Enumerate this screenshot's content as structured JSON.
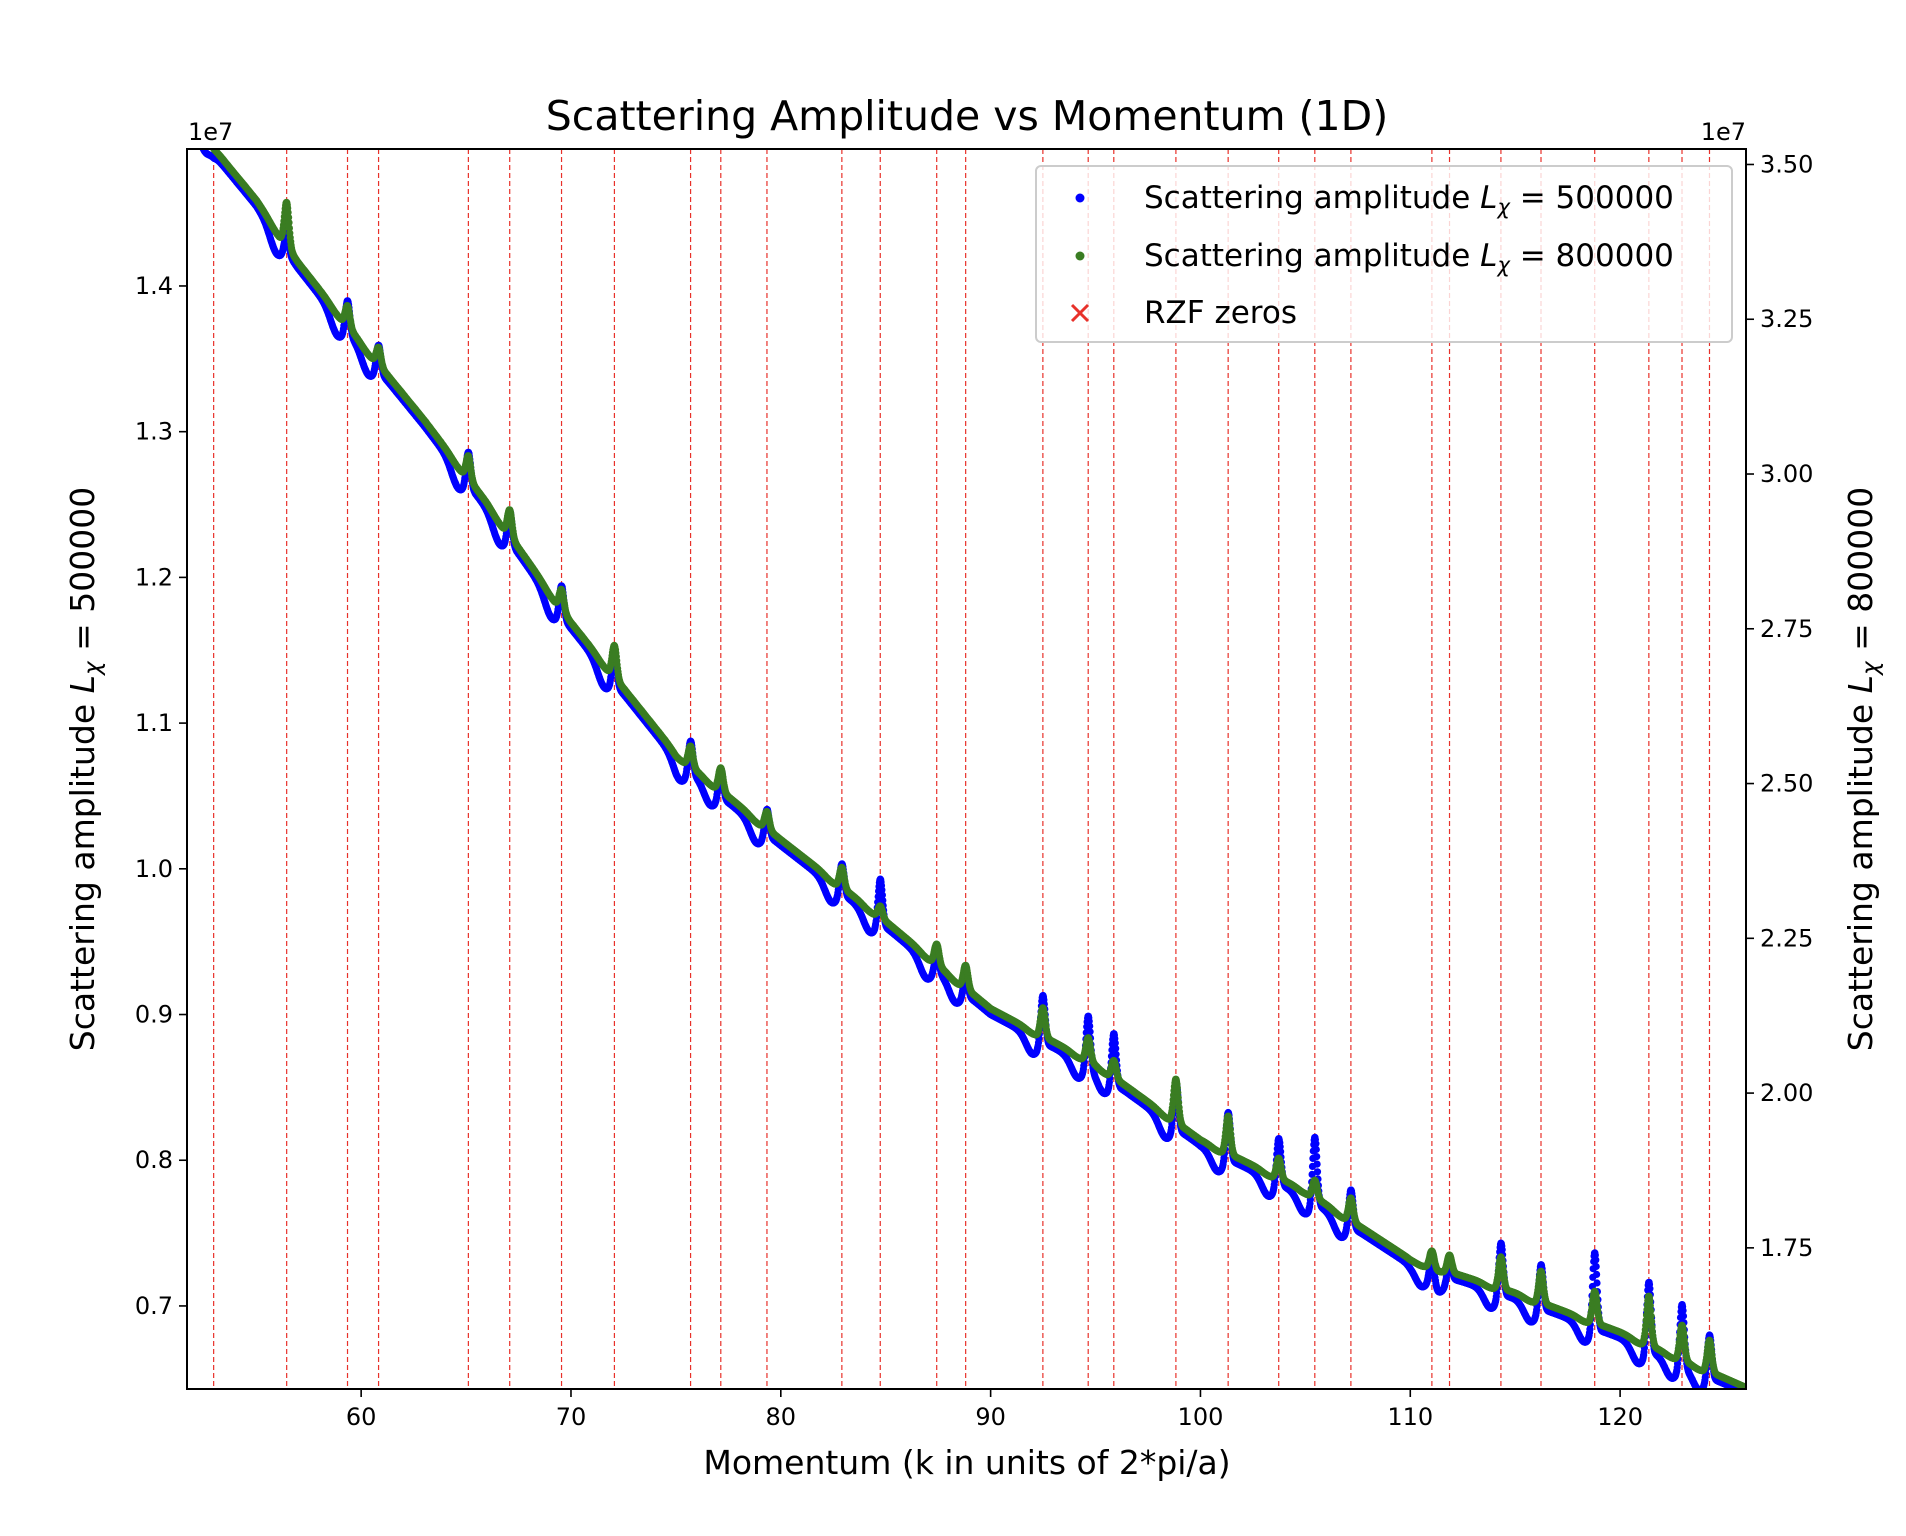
{
  "chart_data": {
    "type": "scatter",
    "title": "Scattering Amplitude vs Momentum (1D)",
    "xlabel": "Momentum (k in units of 2*pi/a)",
    "ylabel_left_prefix": "Scattering amplitude ",
    "ylabel_left_sym": "L",
    "ylabel_left_sub": "χ",
    "ylabel_left_suffix": " = 500000",
    "ylabel_right_prefix": "Scattering amplitude ",
    "ylabel_right_sym": "L",
    "ylabel_right_sub": "χ",
    "ylabel_right_suffix": " = 800000",
    "left_offset_label": "1e7",
    "right_offset_label": "1e7",
    "xlim": [
      51.7,
      126.0
    ],
    "ylim_left": [
      0.643,
      1.494
    ],
    "ylim_right": [
      1.522,
      3.525
    ],
    "xticks": [
      60,
      70,
      80,
      90,
      100,
      110,
      120
    ],
    "xtick_labels": [
      "60",
      "70",
      "80",
      "90",
      "100",
      "110",
      "120"
    ],
    "yticks_left": [
      0.7,
      0.8,
      0.9,
      1.0,
      1.1,
      1.2,
      1.3,
      1.4
    ],
    "ytick_labels_left": [
      "0.7",
      "0.8",
      "0.9",
      "1.0",
      "1.1",
      "1.2",
      "1.3",
      "1.4"
    ],
    "yticks_right": [
      1.75,
      2.0,
      2.25,
      2.5,
      2.75,
      3.0,
      3.25,
      3.5
    ],
    "ytick_labels_right": [
      "1.75",
      "2.00",
      "2.25",
      "2.50",
      "2.75",
      "3.00",
      "3.25",
      "3.50"
    ],
    "rzf_zeros": [
      52.97,
      56.45,
      59.35,
      60.83,
      65.11,
      67.08,
      69.55,
      72.07,
      75.7,
      77.14,
      79.34,
      82.91,
      84.74,
      87.43,
      88.81,
      92.49,
      94.65,
      95.87,
      98.83,
      101.32,
      103.73,
      105.45,
      107.17,
      111.03,
      111.87,
      114.32,
      116.23,
      118.79,
      121.37,
      122.95,
      124.26
    ],
    "baseline_x": [
      51.7,
      53,
      55,
      57,
      60,
      63,
      66,
      70,
      75,
      80,
      85,
      90,
      95,
      100,
      105,
      110,
      115,
      120,
      126
    ],
    "baseline_y": [
      1.53,
      1.49,
      1.455,
      1.412,
      1.357,
      1.304,
      1.247,
      1.165,
      1.075,
      1.016,
      0.96,
      0.9,
      0.862,
      0.81,
      0.775,
      0.728,
      0.705,
      0.678,
      0.64
    ],
    "series": [
      {
        "name": "Scattering amplitude L_χ = 500000",
        "color": "#0000ff",
        "axis": "left",
        "peak_heights_1e7": [
          0,
          0.015,
          0.024,
          0.02,
          0.025,
          0.024,
          0.023,
          0.024,
          0.024,
          0.022,
          0.02,
          0.023,
          0.033,
          0.014,
          0.015,
          0.035,
          0.038,
          0.037,
          0.035,
          0.035,
          0.034,
          0.048,
          0.028,
          0.02,
          0.015,
          0.038,
          0.033,
          0.055,
          0.05,
          0.045,
          0.032
        ],
        "dip_depth_1e7": 0.012
      },
      {
        "name": "Scattering amplitude L_χ = 800000",
        "color": "#3a7d22",
        "axis": "right",
        "peak_heights_1e7": [
          0,
          0.03,
          0.014,
          0.012,
          0.016,
          0.018,
          0.014,
          0.022,
          0.014,
          0.016,
          0.012,
          0.014,
          0.008,
          0.014,
          0.016,
          0.02,
          0.016,
          0.012,
          0.03,
          0.026,
          0.014,
          0.012,
          0.016,
          0.012,
          0.012,
          0.022,
          0.022,
          0.022,
          0.034,
          0.024,
          0.022
        ],
        "dip_depth_1e7": 0.002
      }
    ],
    "legend": {
      "placement": "top-right",
      "entries": [
        {
          "key": "blue",
          "marker": "dot",
          "color": "#0000ff",
          "prefix": "Scattering amplitude ",
          "sym": "L",
          "sub": "χ",
          "suffix": " = 500000"
        },
        {
          "key": "green",
          "marker": "dot",
          "color": "#3a7d22",
          "prefix": "Scattering amplitude ",
          "sym": "L",
          "sub": "χ",
          "suffix": " = 800000"
        },
        {
          "key": "rzf",
          "marker": "x",
          "color": "#e8312a",
          "prefix": "RZF zeros",
          "sym": "",
          "sub": "",
          "suffix": ""
        }
      ]
    },
    "rzf_color": "#e8312a"
  }
}
